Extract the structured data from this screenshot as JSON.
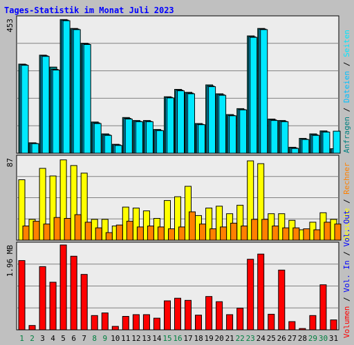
{
  "title": "Tages-Statistik im Monat Juli 2023",
  "colors": {
    "background": "#c0c0c0",
    "plot_bg": "#ececec",
    "title": "#0000ff",
    "grid": "#808080",
    "requests": "#008080",
    "files": "#00c0ff",
    "pages": "#00e8ff",
    "visits": "#ffff00",
    "hosts": "#ff8000",
    "volume_in": "#ff0000",
    "volume_out": "#0000ff",
    "weekend": "#008040",
    "weekday": "#000000",
    "bar_outline": "#000000"
  },
  "chart_data": [
    {
      "type": "bar",
      "panel": "top",
      "ytick_label": "453",
      "ylim": [
        0,
        453
      ],
      "grid": true,
      "categories": [
        "1",
        "2",
        "3",
        "4",
        "5",
        "6",
        "7",
        "8",
        "9",
        "10",
        "11",
        "12",
        "13",
        "14",
        "15",
        "16",
        "17",
        "18",
        "19",
        "20",
        "21",
        "22",
        "23",
        "24",
        "25",
        "26",
        "27",
        "28",
        "29",
        "30",
        "31"
      ],
      "legend": [
        {
          "text": "Anfragen",
          "color_key": "requests"
        },
        {
          "text": "Dateien",
          "color_key": "files"
        },
        {
          "text": "Seiten",
          "color_key": "pages"
        }
      ],
      "series": [
        {
          "name": "Anfragen",
          "color_key": "requests",
          "values": [
            300,
            35,
            330,
            290,
            450,
            420,
            370,
            105,
            65,
            30,
            120,
            110,
            110,
            80,
            190,
            215,
            205,
            100,
            230,
            200,
            130,
            150,
            395,
            420,
            115,
            110,
            20,
            50,
            65,
            75,
            15
          ]
        },
        {
          "name": "Dateien",
          "color_key": "files",
          "values": [
            298,
            33,
            328,
            282,
            448,
            418,
            368,
            102,
            62,
            28,
            117,
            107,
            107,
            77,
            188,
            212,
            202,
            97,
            226,
            197,
            127,
            147,
            392,
            418,
            112,
            107,
            18,
            47,
            62,
            72,
            15
          ]
        },
        {
          "name": "Seiten",
          "color_key": "pages",
          "values": [
            296,
            32,
            326,
            280,
            446,
            416,
            366,
            100,
            60,
            26,
            115,
            106,
            106,
            76,
            186,
            210,
            200,
            96,
            224,
            195,
            126,
            146,
            390,
            416,
            110,
            106,
            16,
            46,
            60,
            71,
            74
          ]
        }
      ]
    },
    {
      "type": "bar",
      "panel": "middle",
      "ytick_label": "87",
      "ylim": [
        0,
        87
      ],
      "grid": true,
      "categories": [
        "1",
        "2",
        "3",
        "4",
        "5",
        "6",
        "7",
        "8",
        "9",
        "10",
        "11",
        "12",
        "13",
        "14",
        "15",
        "16",
        "17",
        "18",
        "19",
        "20",
        "21",
        "22",
        "23",
        "24",
        "25",
        "26",
        "27",
        "28",
        "29",
        "30",
        "31"
      ],
      "legend": [
        {
          "text": "Besuche",
          "color_key": "visits"
        },
        {
          "text": "Rechner",
          "color_key": "hosts"
        }
      ],
      "series": [
        {
          "name": "Besuche",
          "color_key": "visits",
          "values": [
            64,
            22,
            76,
            68,
            85,
            79,
            71,
            22,
            22,
            15,
            35,
            34,
            31,
            23,
            42,
            46,
            57,
            26,
            34,
            36,
            28,
            37,
            84,
            81,
            28,
            28,
            21,
            11,
            19,
            29,
            22
          ]
        },
        {
          "name": "Rechner",
          "color_key": "hosts",
          "values": [
            15,
            20,
            17,
            24,
            23,
            27,
            19,
            13,
            8,
            16,
            20,
            14,
            15,
            14,
            12,
            14,
            30,
            17,
            12,
            14,
            18,
            15,
            22,
            22,
            15,
            13,
            13,
            12,
            11,
            19,
            17
          ]
        }
      ]
    },
    {
      "type": "bar",
      "panel": "bottom",
      "ytick_label": "1.96 MB",
      "ylim": [
        0,
        1.96
      ],
      "grid": true,
      "categories": [
        "1",
        "2",
        "3",
        "4",
        "5",
        "6",
        "7",
        "8",
        "9",
        "10",
        "11",
        "12",
        "13",
        "14",
        "15",
        "16",
        "17",
        "18",
        "19",
        "20",
        "21",
        "22",
        "23",
        "24",
        "25",
        "26",
        "27",
        "28",
        "29",
        "30",
        "31"
      ],
      "legend": [
        {
          "text": "Volumen",
          "color_key": "volume_in"
        },
        {
          "text": "Vol. In",
          "color_key": "volume_out"
        },
        {
          "text": "Vol. Out",
          "color_key": "volume_out"
        }
      ],
      "series": [
        {
          "name": "Volumen",
          "color_key": "volume_in",
          "values": [
            1.6,
            0.1,
            1.46,
            1.1,
            1.96,
            1.7,
            1.28,
            0.33,
            0.39,
            0.08,
            0.31,
            0.35,
            0.35,
            0.27,
            0.67,
            0.73,
            0.68,
            0.34,
            0.77,
            0.65,
            0.35,
            0.5,
            1.63,
            1.75,
            0.36,
            1.38,
            0.19,
            0.03,
            0.33,
            1.04,
            0.23
          ]
        }
      ]
    }
  ],
  "x_labels": {
    "weekend_days": [
      "1",
      "2",
      "8",
      "9",
      "15",
      "16",
      "22",
      "23",
      "29",
      "30"
    ]
  }
}
